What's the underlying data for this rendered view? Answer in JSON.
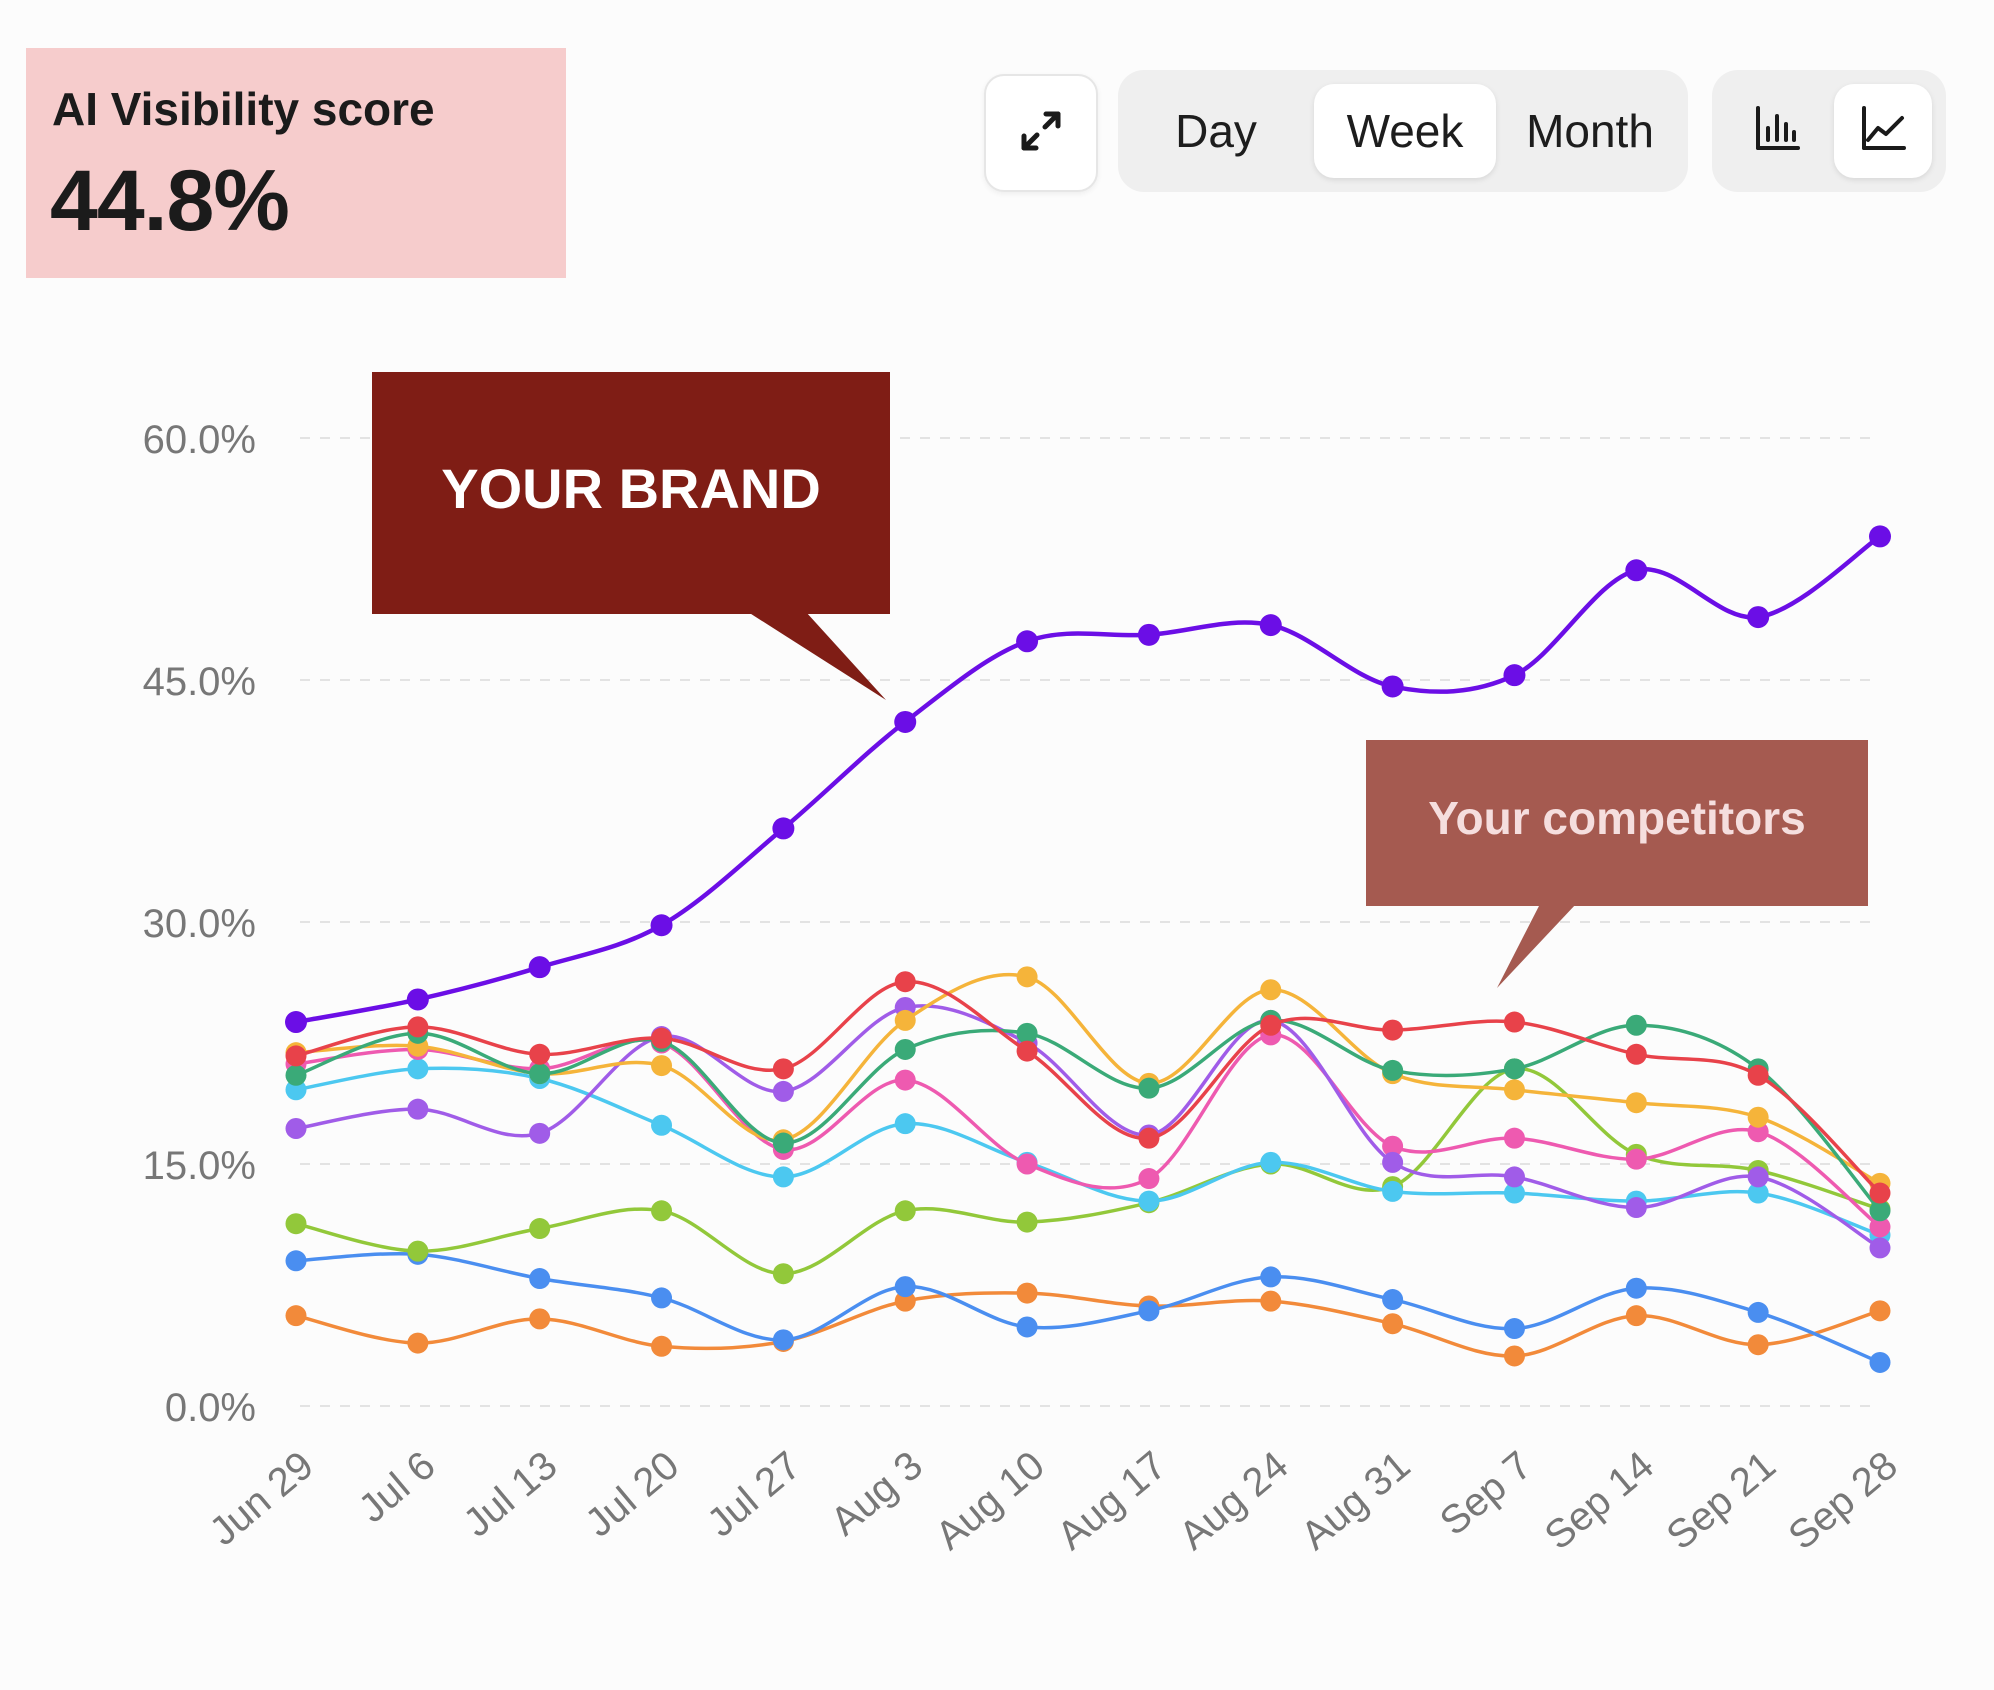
{
  "score_card": {
    "title": "AI Visibility score",
    "value": "44.8%"
  },
  "toolbar": {
    "expand_icon": "expand-arrows-icon",
    "range_options": [
      "Day",
      "Week",
      "Month"
    ],
    "active_range": "Week",
    "view_icons": [
      "bar-chart-icon",
      "line-chart-icon"
    ],
    "active_view": "line-chart-icon"
  },
  "callouts": {
    "brand": "YOUR BRAND",
    "competitors": "Your competitors",
    "brand_color": "#7f1d15",
    "competitors_color": "#a55a50"
  },
  "chart_data": {
    "type": "line",
    "x": [
      "Jun 29",
      "Jul 6",
      "Jul 13",
      "Jul 20",
      "Jul 27",
      "Aug 3",
      "Aug 10",
      "Aug 17",
      "Aug 24",
      "Aug 31",
      "Sep 7",
      "Sep 14",
      "Sep 21",
      "Sep 28"
    ],
    "y_ticks": [
      "0.0%",
      "15.0%",
      "30.0%",
      "45.0%",
      "60.0%"
    ],
    "ylim": [
      0,
      60
    ],
    "grid": true,
    "series": [
      {
        "color": "#6b0ee6",
        "values": [
          23.8,
          25.2,
          27.2,
          29.8,
          35.8,
          42.4,
          47.4,
          47.8,
          48.4,
          44.6,
          45.3,
          51.8,
          48.9,
          53.9
        ]
      },
      {
        "color": "#e8424a",
        "values": [
          21.7,
          23.5,
          21.8,
          22.8,
          20.9,
          26.3,
          22.0,
          16.6,
          23.6,
          23.3,
          23.8,
          21.8,
          20.5,
          13.2
        ]
      },
      {
        "color": "#3aaa78",
        "values": [
          20.5,
          23.1,
          20.6,
          22.6,
          16.3,
          22.1,
          23.1,
          19.7,
          23.9,
          20.8,
          20.9,
          23.6,
          20.9,
          12.1
        ]
      },
      {
        "color": "#f5b43a",
        "values": [
          21.9,
          22.3,
          20.6,
          21.1,
          16.5,
          23.9,
          26.6,
          20.0,
          25.8,
          20.6,
          19.6,
          18.8,
          17.9,
          13.8
        ]
      },
      {
        "color": "#a05ce8",
        "values": [
          17.2,
          18.4,
          16.9,
          22.9,
          19.5,
          24.7,
          22.5,
          16.8,
          23.9,
          15.1,
          14.2,
          12.3,
          14.2,
          9.8
        ]
      },
      {
        "color": "#ee5ab0",
        "values": [
          21.2,
          22.1,
          20.9,
          22.5,
          15.9,
          20.2,
          15.0,
          14.1,
          23.0,
          16.1,
          16.6,
          15.3,
          17.0,
          11.1
        ]
      },
      {
        "color": "#4cc8f0",
        "values": [
          19.6,
          20.9,
          20.3,
          17.4,
          14.2,
          17.5,
          15.1,
          12.7,
          15.1,
          13.3,
          13.2,
          12.7,
          13.2,
          10.6
        ]
      },
      {
        "color": "#92c83a",
        "values": [
          11.3,
          9.6,
          11.0,
          12.1,
          8.2,
          12.1,
          11.4,
          12.6,
          15.0,
          13.6,
          20.9,
          15.6,
          14.6,
          12.2
        ]
      },
      {
        "color": "#4a8ef0",
        "values": [
          9.0,
          9.4,
          7.9,
          6.7,
          4.1,
          7.4,
          4.9,
          5.9,
          8.0,
          6.6,
          4.8,
          7.3,
          5.8,
          2.7
        ]
      },
      {
        "color": "#f28a3a",
        "values": [
          5.6,
          3.9,
          5.4,
          3.7,
          4.0,
          6.5,
          7.0,
          6.2,
          6.5,
          5.1,
          3.1,
          5.6,
          3.8,
          5.9
        ]
      }
    ]
  }
}
